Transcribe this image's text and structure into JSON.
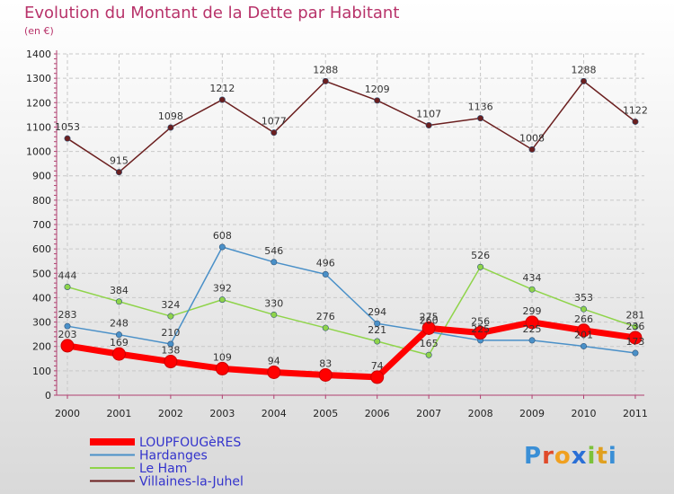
{
  "chart_data": {
    "type": "line",
    "title": "Evolution du Montant de la Dette par Habitant",
    "subtitle": "(en €)",
    "categories": [
      "2000",
      "2001",
      "2002",
      "2003",
      "2004",
      "2005",
      "2006",
      "2007",
      "2008",
      "2009",
      "2010",
      "2011"
    ],
    "ylim": [
      0,
      1400
    ],
    "yticks": [
      0,
      100,
      200,
      300,
      400,
      500,
      600,
      700,
      800,
      900,
      1000,
      1100,
      1200,
      1300,
      1400
    ],
    "grid": true,
    "legend_position": "bottom-left",
    "series": [
      {
        "name": "LOUPFOUGèRES",
        "color": "#ff0000",
        "legend_color": "#3333cc",
        "values": [
          203,
          169,
          138,
          109,
          94,
          83,
          74,
          275,
          256,
          299,
          266,
          236
        ]
      },
      {
        "name": "Hardanges",
        "color": "#4a90c8",
        "legend_color": "#3333cc",
        "values": [
          283,
          248,
          210,
          608,
          546,
          496,
          294,
          260,
          225,
          225,
          201,
          173
        ]
      },
      {
        "name": "Le Ham",
        "color": "#8fd44a",
        "legend_color": "#3333cc",
        "values": [
          444,
          384,
          324,
          392,
          330,
          276,
          221,
          165,
          526,
          434,
          353,
          281
        ]
      },
      {
        "name": "Villaines-la-Juhel",
        "color": "#6b1f1f",
        "legend_color": "#3333cc",
        "values": [
          1053,
          915,
          1098,
          1212,
          1077,
          1288,
          1209,
          1107,
          1136,
          1008,
          1288,
          1122
        ]
      }
    ]
  },
  "logo": {
    "text": "Proxiti"
  }
}
